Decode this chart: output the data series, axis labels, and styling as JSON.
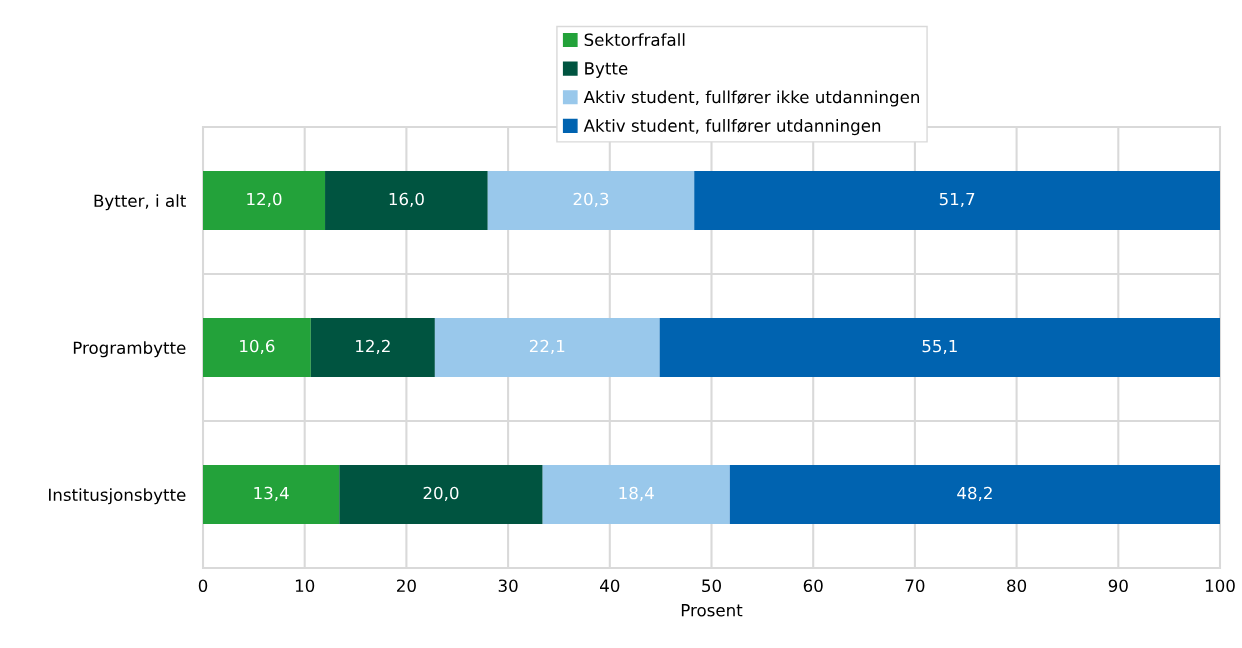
{
  "chart_data": {
    "type": "bar",
    "orientation": "horizontal",
    "stacked": true,
    "xlabel": "Prosent",
    "categories": [
      "Bytter, i alt",
      "Programbytte",
      "Institusjonsbytte"
    ],
    "series": [
      {
        "name": "Sektorfrafall",
        "color": "#23a23a",
        "values": [
          12.0,
          10.6,
          13.4
        ],
        "value_labels": [
          "12,0",
          "10,6",
          "13,4"
        ]
      },
      {
        "name": "Bytte",
        "color": "#005440",
        "values": [
          16.0,
          12.2,
          20.0
        ],
        "value_labels": [
          "16,0",
          "12,2",
          "20,0"
        ]
      },
      {
        "name": "Aktiv student, fullfører ikke utdanningen",
        "color": "#99c8eb",
        "values": [
          20.3,
          22.1,
          18.4
        ],
        "value_labels": [
          "20,3",
          "22,1",
          "18,4"
        ]
      },
      {
        "name": "Aktiv student, fullfører utdanningen",
        "color": "#0063b0",
        "values": [
          51.7,
          55.1,
          48.2
        ],
        "value_labels": [
          "51,7",
          "55,1",
          "48,2"
        ]
      }
    ],
    "xlim": [
      0,
      100
    ],
    "xticks": [
      0,
      10,
      20,
      30,
      40,
      50,
      60,
      70,
      80,
      90,
      100
    ],
    "grid": true,
    "legend": "top"
  }
}
